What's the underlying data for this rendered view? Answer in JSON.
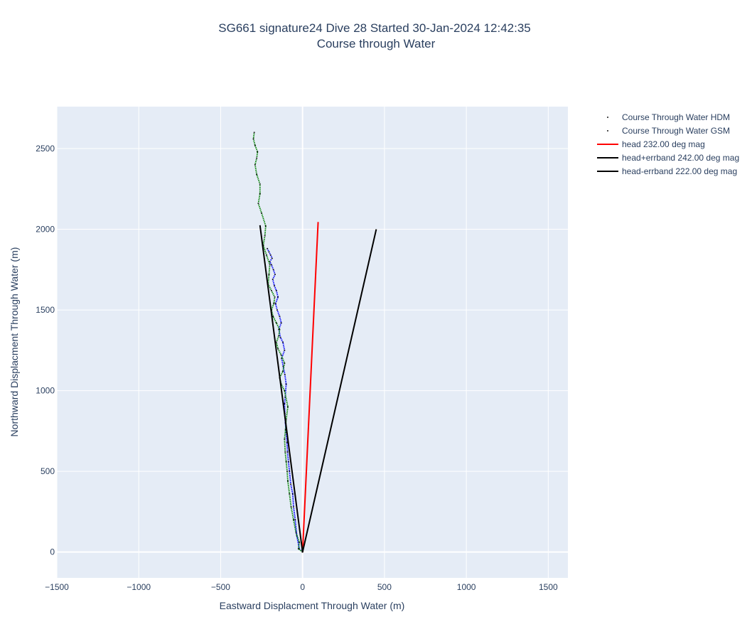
{
  "chart_data": {
    "type": "line",
    "title_line1": "SG661 signature24 Dive 28 Started 30-Jan-2024 12:42:35",
    "title_line2": "Course through Water",
    "xlabel": "Eastward Displacment Through Water (m)",
    "ylabel": "Northward Displacment Through Water (m)",
    "xlim": [
      -1500,
      1620
    ],
    "ylim": [
      -160,
      2760
    ],
    "xticks": [
      -1500,
      -1000,
      -500,
      0,
      500,
      1000,
      1500
    ],
    "xtick_labels": [
      "−1500",
      "−1000",
      "−500",
      "0",
      "500",
      "1000",
      "1500"
    ],
    "yticks": [
      0,
      500,
      1000,
      1500,
      2000,
      2500
    ],
    "ytick_labels": [
      "0",
      "500",
      "1000",
      "1500",
      "2000",
      "2500"
    ],
    "grid": true,
    "legend_position": "top-right outside",
    "plot_bgcolor": "#E5ECF6",
    "series": [
      {
        "name": "Course Through Water HDM",
        "mode": "markers",
        "color": "#0000ff",
        "x": [
          0,
          -20,
          -35,
          -45,
          -55,
          -60,
          -72,
          -80,
          -86,
          -92,
          -95,
          -100,
          -105,
          -108,
          -110,
          -106,
          -100,
          -108,
          -118,
          -128,
          -110,
          -120,
          -135,
          -145,
          -130,
          -140,
          -155,
          -165,
          -150,
          -160,
          -172,
          -182,
          -168,
          -178,
          -190,
          -200,
          -186,
          -195,
          -205,
          -215
        ],
        "y": [
          0,
          20,
          100,
          200,
          280,
          360,
          420,
          500,
          560,
          620,
          680,
          740,
          800,
          860,
          920,
          960,
          1040,
          1100,
          1150,
          1200,
          1250,
          1300,
          1330,
          1380,
          1420,
          1460,
          1500,
          1540,
          1580,
          1620,
          1650,
          1690,
          1720,
          1750,
          1780,
          1800,
          1820,
          1840,
          1860,
          1880
        ]
      },
      {
        "name": "Course Through Water GSM",
        "mode": "markers",
        "color": "#008000",
        "x": [
          0,
          -25,
          -20,
          -40,
          -55,
          -70,
          -80,
          -90,
          -94,
          -100,
          -106,
          -110,
          -104,
          -100,
          -90,
          -110,
          -130,
          -140,
          -120,
          -110,
          -130,
          -150,
          -160,
          -145,
          -140,
          -160,
          -180,
          -190,
          -175,
          -170,
          -190,
          -210,
          -205,
          -200,
          -220,
          -240,
          -230,
          -225,
          -250,
          -270,
          -260,
          -260,
          -280,
          -290,
          -280,
          -275,
          -290,
          -300,
          -295
        ],
        "y": [
          0,
          20,
          60,
          120,
          200,
          280,
          360,
          440,
          500,
          560,
          620,
          700,
          760,
          820,
          900,
          1000,
          1040,
          1080,
          1120,
          1170,
          1220,
          1260,
          1300,
          1340,
          1380,
          1420,
          1460,
          1500,
          1540,
          1580,
          1620,
          1660,
          1720,
          1780,
          1840,
          1900,
          1960,
          2020,
          2100,
          2160,
          2220,
          2280,
          2340,
          2400,
          2440,
          2480,
          2520,
          2560,
          2600
        ]
      },
      {
        "name": "head 232.00 deg mag",
        "mode": "lines",
        "color": "#ff0000",
        "x": [
          0,
          95
        ],
        "y": [
          0,
          2045
        ]
      },
      {
        "name": "head+errband 242.00 deg mag",
        "mode": "lines",
        "color": "#000000",
        "x": [
          0,
          450
        ],
        "y": [
          0,
          2000
        ]
      },
      {
        "name": "head-errband 222.00 deg mag",
        "mode": "lines",
        "color": "#000000",
        "x": [
          0,
          -260
        ],
        "y": [
          0,
          2025
        ]
      }
    ]
  }
}
